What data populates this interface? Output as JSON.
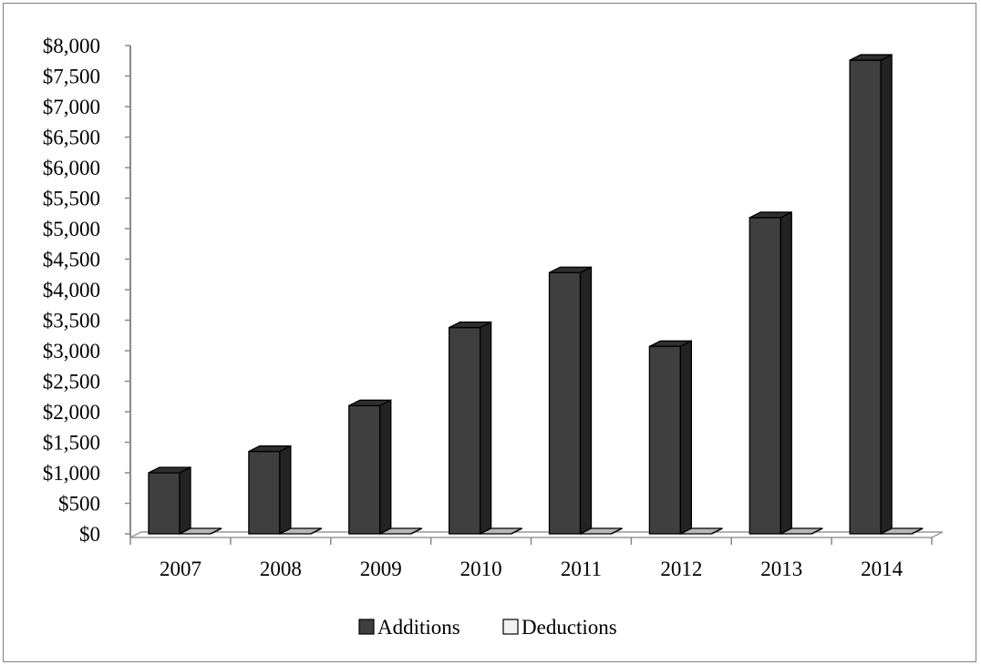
{
  "chart_data": {
    "type": "bar",
    "categories": [
      "2007",
      "2008",
      "2009",
      "2010",
      "2011",
      "2012",
      "2013",
      "2014"
    ],
    "series": [
      {
        "name": "Additions",
        "values": [
          1000,
          1350,
          2100,
          3380,
          4280,
          3070,
          5180,
          7760
        ],
        "color": "#3f3f3f"
      },
      {
        "name": "Deductions",
        "values": [
          0,
          0,
          0,
          0,
          0,
          0,
          0,
          0
        ],
        "color": "#f2f2f2"
      }
    ],
    "ylim": [
      0,
      8000
    ],
    "yticks": [
      "$0",
      "$500",
      "$1,000",
      "$1,500",
      "$2,000",
      "$2,500",
      "$3,000",
      "$3,500",
      "$4,000",
      "$4,500",
      "$5,000",
      "$5,500",
      "$6,000",
      "$6,500",
      "$7,000",
      "$7,500",
      "$8,000"
    ],
    "ytick_values": [
      0,
      500,
      1000,
      1500,
      2000,
      2500,
      3000,
      3500,
      4000,
      4500,
      5000,
      5500,
      6000,
      6500,
      7000,
      7500,
      8000
    ],
    "title": "",
    "xlabel": "",
    "ylabel": "",
    "grid": false,
    "legend_position": "bottom",
    "style": "3d-column"
  }
}
